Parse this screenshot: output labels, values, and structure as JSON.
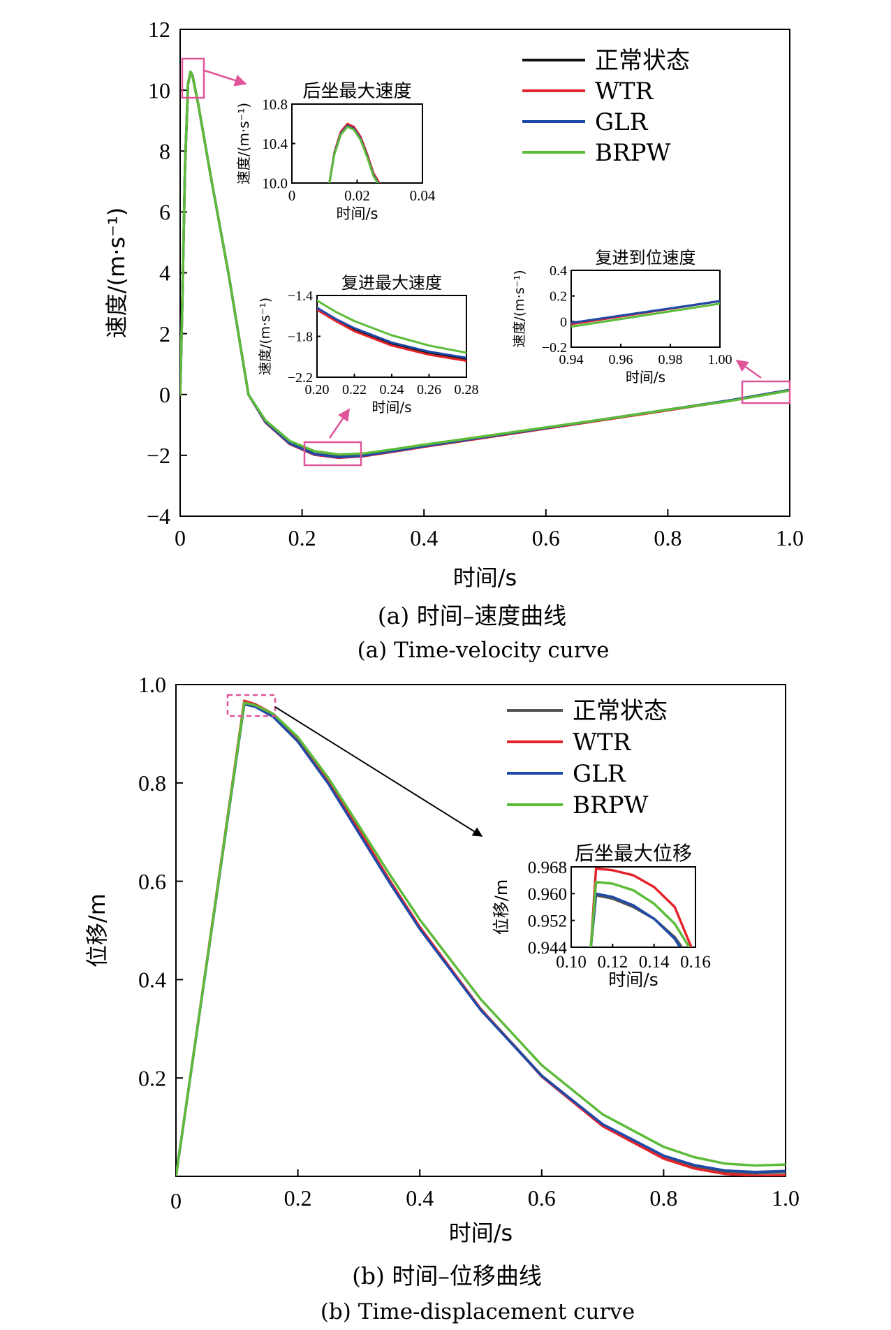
{
  "colors": {
    "normal": "#111111",
    "normal_b": "#555555",
    "WTR": "#e5232b",
    "GLR": "#1f4aa8",
    "BRPW": "#5dbb3a",
    "highlight": "#e0559a",
    "arrow_b": "#000000"
  },
  "chart_data": [
    {
      "id": "a",
      "type": "line",
      "xlabel": "时间/s",
      "ylabel": "速度/(m·s⁻¹)",
      "xlim": [
        0,
        1.0
      ],
      "ylim": [
        -4,
        12
      ],
      "xticks": [
        0,
        0.2,
        0.4,
        0.6,
        0.8,
        1.0
      ],
      "xtick_labels": [
        "0",
        "0.2",
        "0.4",
        "0.6",
        "0.8",
        "1.0"
      ],
      "yticks": [
        -4,
        -2,
        0,
        2,
        4,
        6,
        8,
        10,
        12
      ],
      "ytick_labels": [
        "−4",
        "−2",
        "0",
        "2",
        "4",
        "6",
        "8",
        "10",
        "12"
      ],
      "caption_cn": "(a) 时间–速度曲线",
      "caption_en": "(a) Time-velocity curve",
      "legend_position": "top-right",
      "series": [
        {
          "name": "正常状态",
          "color_key": "normal",
          "x": [
            0,
            0.003,
            0.008,
            0.013,
            0.017,
            0.02,
            0.03,
            0.05,
            0.08,
            0.112,
            0.14,
            0.18,
            0.22,
            0.26,
            0.3,
            0.35,
            0.4,
            0.5,
            0.6,
            0.7,
            0.8,
            0.9,
            1.0
          ],
          "y": [
            0,
            2.5,
            7.5,
            10.2,
            10.6,
            10.5,
            9.5,
            7.2,
            3.9,
            0.0,
            -0.9,
            -1.6,
            -1.95,
            -2.05,
            -2.0,
            -1.85,
            -1.7,
            -1.4,
            -1.1,
            -0.8,
            -0.5,
            -0.2,
            0.15
          ]
        },
        {
          "name": "WTR",
          "color_key": "WTR",
          "x": [
            0,
            0.003,
            0.008,
            0.013,
            0.017,
            0.02,
            0.03,
            0.05,
            0.08,
            0.112,
            0.14,
            0.18,
            0.22,
            0.26,
            0.3,
            0.35,
            0.4,
            0.5,
            0.6,
            0.7,
            0.8,
            0.9,
            1.0
          ],
          "y": [
            0,
            2.5,
            7.5,
            10.2,
            10.6,
            10.5,
            9.5,
            7.2,
            3.9,
            0.0,
            -0.92,
            -1.63,
            -1.98,
            -2.08,
            -2.03,
            -1.88,
            -1.72,
            -1.42,
            -1.12,
            -0.82,
            -0.52,
            -0.21,
            0.15
          ]
        },
        {
          "name": "GLR",
          "color_key": "GLR",
          "x": [
            0,
            0.003,
            0.008,
            0.013,
            0.017,
            0.02,
            0.03,
            0.05,
            0.08,
            0.112,
            0.14,
            0.18,
            0.22,
            0.26,
            0.3,
            0.35,
            0.4,
            0.5,
            0.6,
            0.7,
            0.8,
            0.9,
            1.0
          ],
          "y": [
            0,
            2.5,
            7.5,
            10.2,
            10.6,
            10.5,
            9.5,
            7.2,
            3.9,
            0.0,
            -0.9,
            -1.61,
            -1.96,
            -2.06,
            -2.01,
            -1.86,
            -1.7,
            -1.4,
            -1.1,
            -0.8,
            -0.5,
            -0.2,
            0.15
          ]
        },
        {
          "name": "BRPW",
          "color_key": "BRPW",
          "x": [
            0,
            0.003,
            0.008,
            0.013,
            0.017,
            0.02,
            0.03,
            0.05,
            0.08,
            0.112,
            0.14,
            0.18,
            0.22,
            0.26,
            0.3,
            0.35,
            0.4,
            0.5,
            0.6,
            0.7,
            0.8,
            0.9,
            1.0
          ],
          "y": [
            0,
            2.5,
            7.5,
            10.2,
            10.6,
            10.5,
            9.5,
            7.2,
            3.9,
            0.0,
            -0.85,
            -1.53,
            -1.86,
            -1.97,
            -1.94,
            -1.8,
            -1.65,
            -1.37,
            -1.08,
            -0.8,
            -0.5,
            -0.22,
            0.13
          ]
        }
      ],
      "insets": [
        {
          "id": "a1",
          "title": "后坐最大速度",
          "xlabel": "时间/s",
          "ylabel": "速度/(m·s⁻¹)",
          "xlim": [
            0,
            0.04
          ],
          "ylim": [
            10.0,
            10.8
          ],
          "xticks": [
            0,
            0.02,
            0.04
          ],
          "xtick_labels": [
            "0",
            "0.02",
            "0.04"
          ],
          "yticks": [
            10.0,
            10.4,
            10.8
          ],
          "ytick_labels": [
            "10.0",
            "10.4",
            "10.8"
          ],
          "series": [
            {
              "name": "正常状态",
              "color_key": "normal",
              "x": [
                0.0115,
                0.013,
                0.015,
                0.017,
                0.019,
                0.021,
                0.023,
                0.025,
                0.0265
              ],
              "y": [
                10.0,
                10.3,
                10.5,
                10.58,
                10.55,
                10.45,
                10.28,
                10.08,
                10.0
              ]
            },
            {
              "name": "WTR",
              "color_key": "WTR",
              "x": [
                0.0115,
                0.013,
                0.015,
                0.017,
                0.019,
                0.021,
                0.023,
                0.025,
                0.0268
              ],
              "y": [
                10.0,
                10.31,
                10.52,
                10.6,
                10.57,
                10.47,
                10.3,
                10.1,
                10.0
              ]
            },
            {
              "name": "GLR",
              "color_key": "GLR",
              "x": [
                0.0115,
                0.013,
                0.015,
                0.017,
                0.019,
                0.021,
                0.023,
                0.025,
                0.0265
              ],
              "y": [
                10.0,
                10.3,
                10.5,
                10.58,
                10.55,
                10.45,
                10.28,
                10.08,
                10.0
              ]
            },
            {
              "name": "BRPW",
              "color_key": "BRPW",
              "x": [
                0.0115,
                0.013,
                0.015,
                0.017,
                0.019,
                0.021,
                0.023,
                0.025,
                0.0263
              ],
              "y": [
                10.0,
                10.29,
                10.49,
                10.57,
                10.54,
                10.44,
                10.27,
                10.07,
                10.0
              ]
            }
          ]
        },
        {
          "id": "a2",
          "title": "复进最大速度",
          "xlabel": "时间/s",
          "ylabel": "速度/(m·s⁻¹)",
          "xlim": [
            0.2,
            0.28
          ],
          "ylim": [
            -2.2,
            -1.4
          ],
          "xticks": [
            0.2,
            0.22,
            0.24,
            0.26,
            0.28
          ],
          "xtick_labels": [
            "0.20",
            "0.22",
            "0.24",
            "0.26",
            "0.28"
          ],
          "yticks": [
            -2.2,
            -1.8,
            -1.4
          ],
          "ytick_labels": [
            "−2.2",
            "−1.8",
            "−1.4"
          ],
          "series": [
            {
              "name": "正常状态",
              "color_key": "normal",
              "x": [
                0.2,
                0.21,
                0.22,
                0.24,
                0.26,
                0.28
              ],
              "y": [
                -1.52,
                -1.63,
                -1.73,
                -1.87,
                -1.96,
                -2.02
              ]
            },
            {
              "name": "WTR",
              "color_key": "WTR",
              "x": [
                0.2,
                0.21,
                0.22,
                0.24,
                0.26,
                0.28
              ],
              "y": [
                -1.54,
                -1.65,
                -1.75,
                -1.89,
                -1.98,
                -2.04
              ]
            },
            {
              "name": "GLR",
              "color_key": "GLR",
              "x": [
                0.2,
                0.21,
                0.22,
                0.24,
                0.26,
                0.28
              ],
              "y": [
                -1.52,
                -1.63,
                -1.72,
                -1.86,
                -1.95,
                -2.01
              ]
            },
            {
              "name": "BRPW",
              "color_key": "BRPW",
              "x": [
                0.2,
                0.21,
                0.22,
                0.24,
                0.26,
                0.28
              ],
              "y": [
                -1.45,
                -1.56,
                -1.65,
                -1.79,
                -1.89,
                -1.96
              ]
            }
          ]
        },
        {
          "id": "a3",
          "title": "复进到位速度",
          "xlabel": "时间/s",
          "ylabel": "速度/(m·s⁻¹)",
          "xlim": [
            0.94,
            1.0
          ],
          "ylim": [
            -0.2,
            0.4
          ],
          "xticks": [
            0.94,
            0.96,
            0.98,
            1.0
          ],
          "xtick_labels": [
            "0.94",
            "0.96",
            "0.98",
            "1.00"
          ],
          "yticks": [
            -0.2,
            0,
            0.2,
            0.4
          ],
          "ytick_labels": [
            "−0.2",
            "0",
            "0.2",
            "0.4"
          ],
          "series": [
            {
              "name": "正常状态",
              "color_key": "normal",
              "x": [
                0.94,
                1.0
              ],
              "y": [
                -0.02,
                0.16
              ]
            },
            {
              "name": "WTR",
              "color_key": "WTR",
              "x": [
                0.94,
                1.0
              ],
              "y": [
                -0.02,
                0.16
              ]
            },
            {
              "name": "GLR",
              "color_key": "GLR",
              "x": [
                0.94,
                1.0
              ],
              "y": [
                -0.01,
                0.16
              ]
            },
            {
              "name": "BRPW",
              "color_key": "BRPW",
              "x": [
                0.94,
                1.0
              ],
              "y": [
                -0.04,
                0.14
              ]
            }
          ]
        }
      ]
    },
    {
      "id": "b",
      "type": "line",
      "xlabel": "时间/s",
      "ylabel": "位移/m",
      "xlim": [
        0,
        1.0
      ],
      "ylim": [
        0,
        1.0
      ],
      "xticks": [
        0,
        0.2,
        0.4,
        0.6,
        0.8,
        1.0
      ],
      "xtick_labels": [
        "0",
        "0.2",
        "0.4",
        "0.6",
        "0.8",
        "1.0"
      ],
      "yticks": [
        0.2,
        0.4,
        0.6,
        0.8,
        1.0
      ],
      "ytick_labels": [
        "0.2",
        "0.4",
        "0.6",
        "0.8",
        "1.0"
      ],
      "caption_cn": "(b) 时间–位移曲线",
      "caption_en": "(b) Time-displacement curve",
      "legend_position": "top-right",
      "series": [
        {
          "name": "正常状态",
          "color_key": "normal_b",
          "x": [
            0,
            0.112,
            0.13,
            0.16,
            0.2,
            0.25,
            0.3,
            0.35,
            0.4,
            0.5,
            0.6,
            0.7,
            0.8,
            0.85,
            0.9,
            0.95,
            1.0
          ],
          "y": [
            0,
            0.96,
            0.955,
            0.935,
            0.885,
            0.8,
            0.7,
            0.6,
            0.505,
            0.34,
            0.205,
            0.105,
            0.04,
            0.02,
            0.009,
            0.006,
            0.008
          ]
        },
        {
          "name": "WTR",
          "color_key": "WTR",
          "x": [
            0,
            0.112,
            0.13,
            0.16,
            0.2,
            0.25,
            0.3,
            0.35,
            0.4,
            0.5,
            0.6,
            0.7,
            0.8,
            0.85,
            0.9,
            0.95,
            1.0
          ],
          "y": [
            0,
            0.967,
            0.96,
            0.94,
            0.89,
            0.805,
            0.705,
            0.603,
            0.507,
            0.34,
            0.203,
            0.102,
            0.036,
            0.016,
            0.005,
            0.001,
            0.002
          ]
        },
        {
          "name": "GLR",
          "color_key": "GLR",
          "x": [
            0,
            0.112,
            0.13,
            0.16,
            0.2,
            0.25,
            0.3,
            0.35,
            0.4,
            0.5,
            0.6,
            0.7,
            0.8,
            0.85,
            0.9,
            0.95,
            1.0
          ],
          "y": [
            0,
            0.96,
            0.955,
            0.934,
            0.884,
            0.798,
            0.698,
            0.598,
            0.503,
            0.338,
            0.204,
            0.106,
            0.042,
            0.023,
            0.012,
            0.009,
            0.011
          ]
        },
        {
          "name": "BRPW",
          "color_key": "BRPW",
          "x": [
            0,
            0.112,
            0.13,
            0.16,
            0.2,
            0.25,
            0.3,
            0.35,
            0.4,
            0.5,
            0.6,
            0.7,
            0.8,
            0.85,
            0.9,
            0.95,
            1.0
          ],
          "y": [
            0,
            0.963,
            0.958,
            0.94,
            0.893,
            0.81,
            0.713,
            0.615,
            0.522,
            0.36,
            0.226,
            0.126,
            0.06,
            0.039,
            0.026,
            0.022,
            0.024
          ]
        }
      ],
      "insets": [
        {
          "id": "b1",
          "title": "后坐最大位移",
          "xlabel": "时间/s",
          "ylabel": "位移/m",
          "xlim": [
            0.1,
            0.16
          ],
          "ylim": [
            0.944,
            0.968
          ],
          "xticks": [
            0.1,
            0.12,
            0.14,
            0.16
          ],
          "xtick_labels": [
            "0.10",
            "0.12",
            "0.14",
            "0.16"
          ],
          "yticks": [
            0.944,
            0.952,
            0.96,
            0.968
          ],
          "ytick_labels": [
            "0.944",
            "0.952",
            "0.960",
            "0.968"
          ],
          "series": [
            {
              "name": "正常状态",
              "color_key": "normal_b",
              "x": [
                0.1095,
                0.112,
                0.12,
                0.13,
                0.14,
                0.15,
                0.1535
              ],
              "y": [
                0.944,
                0.9595,
                0.9585,
                0.956,
                0.9525,
                0.947,
                0.944
              ]
            },
            {
              "name": "WTR",
              "color_key": "WTR",
              "x": [
                0.1095,
                0.112,
                0.12,
                0.13,
                0.14,
                0.15,
                0.158
              ],
              "y": [
                0.944,
                0.9675,
                0.967,
                0.9655,
                0.962,
                0.956,
                0.944
              ]
            },
            {
              "name": "GLR",
              "color_key": "GLR",
              "x": [
                0.1095,
                0.112,
                0.12,
                0.13,
                0.14,
                0.15,
                0.1525
              ],
              "y": [
                0.944,
                0.96,
                0.959,
                0.9565,
                0.9525,
                0.9465,
                0.944
              ]
            },
            {
              "name": "BRPW",
              "color_key": "BRPW",
              "x": [
                0.1095,
                0.112,
                0.12,
                0.13,
                0.14,
                0.15,
                0.157
              ],
              "y": [
                0.944,
                0.9635,
                0.963,
                0.961,
                0.957,
                0.951,
                0.944
              ]
            }
          ]
        }
      ]
    }
  ]
}
